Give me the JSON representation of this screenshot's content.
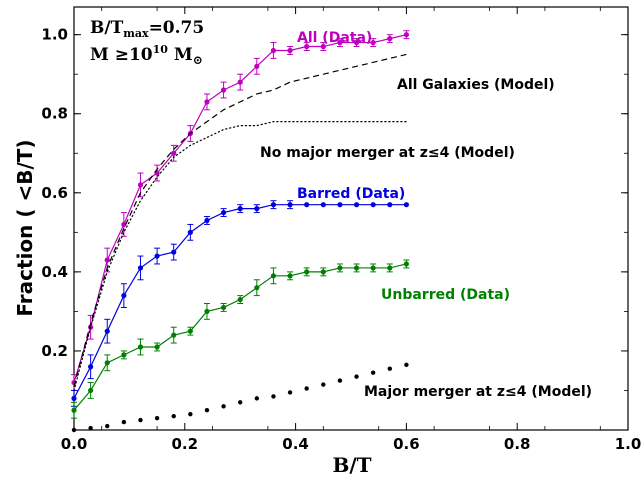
{
  "chart_data": {
    "type": "line",
    "xlabel": "B/T",
    "ylabel": "Fraction ( <B/T)",
    "xlim": [
      0.0,
      1.0
    ],
    "ylim": [
      0.0,
      1.07
    ],
    "x_ticks": [
      0.0,
      0.2,
      0.4,
      0.6,
      0.8,
      1.0
    ],
    "y_ticks": [
      0.2,
      0.4,
      0.6,
      0.8,
      1.0
    ],
    "x_tick_labels": [
      "0.0",
      "0.2",
      "0.4",
      "0.6",
      "0.8",
      "1.0"
    ],
    "y_tick_labels": [
      "0.2",
      "0.4",
      "0.6",
      "0.8",
      "1.0"
    ],
    "info_line1": "B/T",
    "info_line1_sub": "max",
    "info_line1_value": "=0.75",
    "info_line2": "M ≥10",
    "info_line2_sup": "10",
    "info_line2_tail": " M",
    "info_line2_sub": "⊙",
    "series": [
      {
        "name": "All (Data)",
        "label": "All (Data)",
        "color": "#bf00bf",
        "style": "data",
        "x": [
          0.0,
          0.03,
          0.06,
          0.09,
          0.12,
          0.15,
          0.18,
          0.21,
          0.24,
          0.27,
          0.3,
          0.33,
          0.36,
          0.39,
          0.42,
          0.45,
          0.48,
          0.51,
          0.54,
          0.57,
          0.6
        ],
        "y": [
          0.12,
          0.26,
          0.43,
          0.52,
          0.62,
          0.65,
          0.7,
          0.75,
          0.83,
          0.86,
          0.88,
          0.92,
          0.96,
          0.96,
          0.97,
          0.97,
          0.98,
          0.98,
          0.98,
          0.99,
          1.0
        ],
        "err": [
          0.02,
          0.03,
          0.03,
          0.03,
          0.03,
          0.02,
          0.02,
          0.02,
          0.02,
          0.02,
          0.02,
          0.02,
          0.02,
          0.01,
          0.01,
          0.01,
          0.01,
          0.01,
          0.01,
          0.01,
          0.01
        ]
      },
      {
        "name": "Barred (Data)",
        "label": "Barred (Data)",
        "color": "#0000e0",
        "style": "data",
        "x": [
          0.0,
          0.03,
          0.06,
          0.09,
          0.12,
          0.15,
          0.18,
          0.21,
          0.24,
          0.27,
          0.3,
          0.33,
          0.36,
          0.39,
          0.42,
          0.45,
          0.48,
          0.51,
          0.54,
          0.57,
          0.6
        ],
        "y": [
          0.08,
          0.16,
          0.25,
          0.34,
          0.41,
          0.44,
          0.45,
          0.5,
          0.53,
          0.55,
          0.56,
          0.56,
          0.57,
          0.57,
          0.57,
          0.57,
          0.57,
          0.57,
          0.57,
          0.57,
          0.57
        ],
        "err": [
          0.02,
          0.03,
          0.03,
          0.03,
          0.03,
          0.02,
          0.02,
          0.02,
          0.01,
          0.01,
          0.01,
          0.01,
          0.01,
          0.01,
          0.0,
          0.0,
          0.0,
          0.0,
          0.0,
          0.0,
          0.0
        ]
      },
      {
        "name": "Unbarred (Data)",
        "label": "Unbarred (Data)",
        "color": "#008000",
        "style": "data",
        "x": [
          0.0,
          0.03,
          0.06,
          0.09,
          0.12,
          0.15,
          0.18,
          0.21,
          0.24,
          0.27,
          0.3,
          0.33,
          0.36,
          0.39,
          0.42,
          0.45,
          0.48,
          0.51,
          0.54,
          0.57,
          0.6
        ],
        "y": [
          0.05,
          0.1,
          0.17,
          0.19,
          0.21,
          0.21,
          0.24,
          0.25,
          0.3,
          0.31,
          0.33,
          0.36,
          0.39,
          0.39,
          0.4,
          0.4,
          0.41,
          0.41,
          0.41,
          0.41,
          0.42
        ],
        "err": [
          0.02,
          0.02,
          0.02,
          0.01,
          0.02,
          0.01,
          0.02,
          0.01,
          0.02,
          0.01,
          0.01,
          0.02,
          0.02,
          0.01,
          0.01,
          0.01,
          0.01,
          0.01,
          0.01,
          0.01,
          0.01
        ]
      },
      {
        "name": "All Galaxies (Model)",
        "label": "All Galaxies (Model)",
        "color": "#000000",
        "style": "dashed",
        "x": [
          0.0,
          0.03,
          0.06,
          0.09,
          0.12,
          0.15,
          0.18,
          0.21,
          0.24,
          0.27,
          0.3,
          0.33,
          0.36,
          0.39,
          0.42,
          0.45,
          0.48,
          0.51,
          0.54,
          0.57,
          0.6
        ],
        "y": [
          0.11,
          0.27,
          0.41,
          0.51,
          0.6,
          0.66,
          0.71,
          0.75,
          0.78,
          0.81,
          0.83,
          0.85,
          0.86,
          0.88,
          0.89,
          0.9,
          0.91,
          0.92,
          0.93,
          0.94,
          0.95
        ]
      },
      {
        "name": "No major merger at z≤4 (Model)",
        "label": "No major merger at z≤4 (Model)",
        "color": "#000000",
        "style": "dotted",
        "x": [
          0.0,
          0.03,
          0.06,
          0.09,
          0.12,
          0.15,
          0.18,
          0.21,
          0.24,
          0.27,
          0.3,
          0.33,
          0.36,
          0.39,
          0.42,
          0.45,
          0.48,
          0.51,
          0.54,
          0.57,
          0.6
        ],
        "y": [
          0.1,
          0.26,
          0.4,
          0.5,
          0.58,
          0.64,
          0.69,
          0.72,
          0.74,
          0.76,
          0.77,
          0.77,
          0.78,
          0.78,
          0.78,
          0.78,
          0.78,
          0.78,
          0.78,
          0.78,
          0.78
        ]
      },
      {
        "name": "Major merger at z≤4 (Model)",
        "label": "Major merger at z≤4 (Model)",
        "color": "#000000",
        "style": "points",
        "x": [
          0.0,
          0.03,
          0.06,
          0.09,
          0.12,
          0.15,
          0.18,
          0.21,
          0.24,
          0.27,
          0.3,
          0.33,
          0.36,
          0.39,
          0.42,
          0.45,
          0.48,
          0.51,
          0.54,
          0.57,
          0.6
        ],
        "y": [
          0.0,
          0.005,
          0.01,
          0.02,
          0.025,
          0.03,
          0.035,
          0.04,
          0.05,
          0.06,
          0.07,
          0.08,
          0.085,
          0.095,
          0.105,
          0.115,
          0.125,
          0.135,
          0.145,
          0.155,
          0.165
        ]
      }
    ]
  }
}
